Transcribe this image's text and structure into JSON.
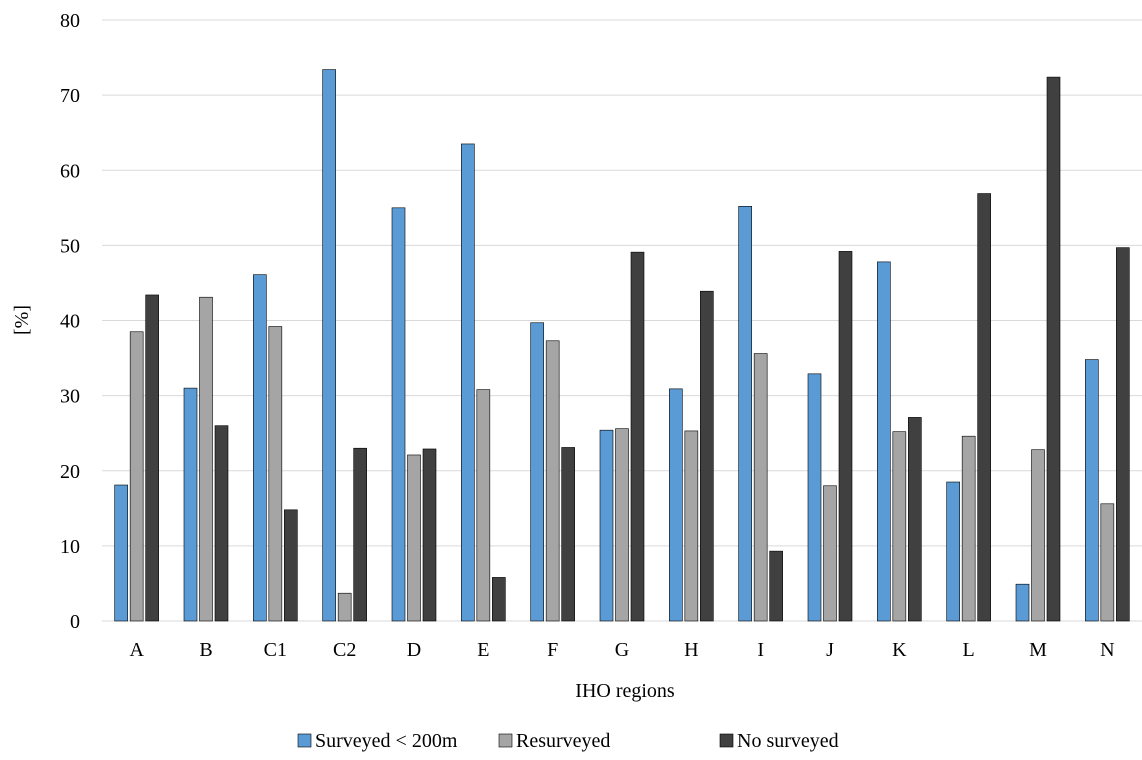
{
  "chart_data": {
    "type": "bar",
    "title": "",
    "xlabel": "IHO regions",
    "ylabel": "[%]",
    "ylim": [
      0,
      80
    ],
    "yticks": [
      0,
      10,
      20,
      30,
      40,
      50,
      60,
      70,
      80
    ],
    "grid": true,
    "legend_position": "bottom",
    "categories": [
      "A",
      "B",
      "C1",
      "C2",
      "D",
      "E",
      "F",
      "G",
      "H",
      "I",
      "J",
      "K",
      "L",
      "M",
      "N"
    ],
    "series": [
      {
        "name": "Surveyed < 200m",
        "color": "#5b9bd5",
        "values": [
          18.1,
          31.0,
          46.1,
          73.4,
          55.0,
          63.5,
          39.7,
          25.4,
          30.9,
          55.2,
          32.9,
          47.8,
          18.5,
          4.9,
          34.8
        ]
      },
      {
        "name": "Resurveyed",
        "color": "#a5a5a5",
        "values": [
          38.5,
          43.1,
          39.2,
          3.7,
          22.1,
          30.8,
          37.3,
          25.6,
          25.3,
          35.6,
          18.0,
          25.2,
          24.6,
          22.8,
          15.6
        ]
      },
      {
        "name": "No surveyed",
        "color": "#404040",
        "values": [
          43.4,
          26.0,
          14.8,
          23.0,
          22.9,
          5.8,
          23.1,
          49.1,
          43.9,
          9.3,
          49.2,
          27.1,
          56.9,
          72.4,
          49.7
        ]
      }
    ]
  }
}
